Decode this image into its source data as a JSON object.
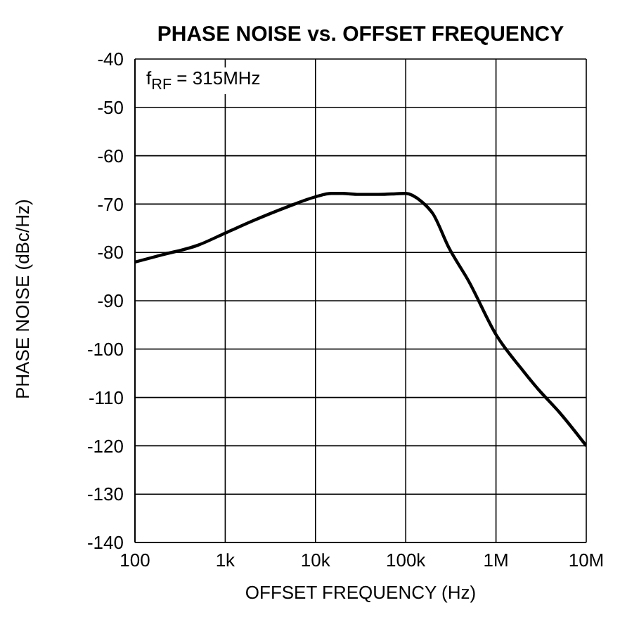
{
  "chart_data": {
    "type": "line",
    "title": "PHASE NOISE vs. OFFSET FREQUENCY",
    "xlabel": "OFFSET FREQUENCY (Hz)",
    "ylabel": "PHASE NOISE (dBc/Hz)",
    "annotations": [
      "f$_{RF}$ = 315MHz"
    ],
    "x": [
      100,
      200,
      500,
      1000,
      2000,
      5000,
      10000,
      15000,
      20000,
      30000,
      50000,
      70000,
      100000,
      150000,
      200000,
      300000,
      500000,
      1000000,
      2000000,
      3000000,
      5000000,
      10000000
    ],
    "series": [
      {
        "color": "#000000",
        "values": [
          -82,
          -80.5,
          -78.5,
          -76,
          -73.5,
          -70.5,
          -68.5,
          -67.8,
          -67.8,
          -68,
          -68,
          -67.9,
          -67.8,
          -69.5,
          -72,
          -79,
          -86,
          -97,
          -104.5,
          -108.5,
          -113,
          -120
        ]
      }
    ],
    "log": "x",
    "xlim": [
      100,
      10000000
    ],
    "xticks": [
      {
        "value": 100,
        "label": "100"
      },
      {
        "value": 1000,
        "label": "1k"
      },
      {
        "value": 10000,
        "label": "10k"
      },
      {
        "value": 100000,
        "label": "100k"
      },
      {
        "value": 1000000,
        "label": "1M"
      },
      {
        "value": 10000000,
        "label": "10M"
      }
    ],
    "ylim": [
      -140,
      -40
    ],
    "yticks": [
      -140,
      -130,
      -120,
      -110,
      -100,
      -90,
      -80,
      -70,
      -60,
      -50,
      -40
    ],
    "grid": true,
    "legend": false,
    "marker": "none",
    "line_style": "solid"
  }
}
